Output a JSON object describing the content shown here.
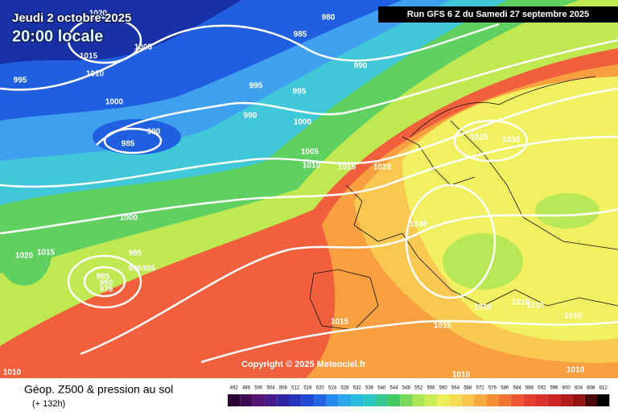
{
  "header": {
    "title": "Jeudi 2 octobre 2025",
    "time": "20:00 locale",
    "run": "Run GFS 6 Z du Samedi 27 septembre 2025"
  },
  "map": {
    "copyright": "Copyright © 2025 Meteociel.fr",
    "isobar_labels": [
      1020,
      980,
      985,
      1005,
      1015,
      1010,
      995,
      990,
      995,
      995,
      990,
      1000,
      1000,
      990,
      985,
      1005,
      1010,
      1015,
      1020,
      1025,
      1030,
      1030,
      1000,
      985,
      990,
      995,
      985,
      990,
      975,
      1020,
      1015,
      1015,
      1015,
      1010,
      1010,
      1010,
      1010,
      1010,
      1010,
      1010
    ]
  },
  "footer": {
    "title": "Géop. Z500 & pression au sol",
    "lead": "(+ 132h)",
    "scale": [
      492,
      496,
      500,
      504,
      508,
      512,
      516,
      520,
      524,
      528,
      532,
      536,
      540,
      544,
      548,
      552,
      556,
      560,
      564,
      568,
      572,
      576,
      580,
      584,
      588,
      592,
      596,
      600,
      604,
      608,
      612
    ]
  }
}
